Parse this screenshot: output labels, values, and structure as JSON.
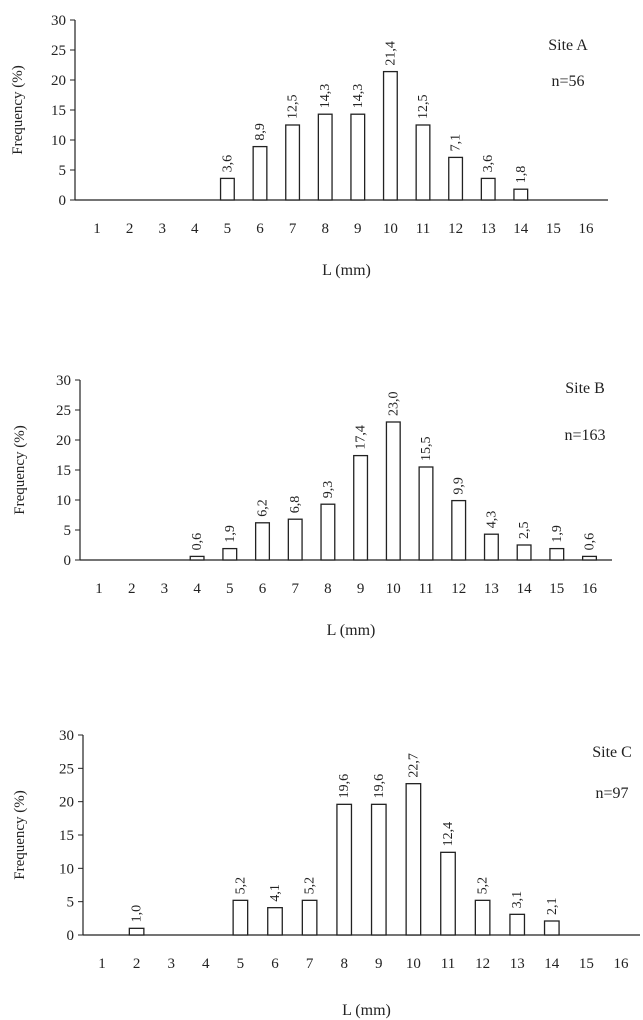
{
  "chart_data": [
    {
      "type": "bar",
      "title": "Site A",
      "subtitle": "n=56",
      "xlabel": "L (mm)",
      "ylabel": "Frequency (%)",
      "ylim": [
        0,
        30
      ],
      "yticks": [
        0,
        5,
        10,
        15,
        20,
        25,
        30
      ],
      "categories": [
        1,
        2,
        3,
        4,
        5,
        6,
        7,
        8,
        9,
        10,
        11,
        12,
        13,
        14,
        15,
        16
      ],
      "values": [
        null,
        null,
        null,
        null,
        3.6,
        8.9,
        12.5,
        14.3,
        14.3,
        21.4,
        12.5,
        7.1,
        3.6,
        1.8,
        null,
        null
      ],
      "labels": [
        "",
        "",
        "",
        "",
        "3,6",
        "8,9",
        "12,5",
        "14,3",
        "14,3",
        "21,4",
        "12,5",
        "7,1",
        "3,6",
        "1,8",
        "",
        ""
      ],
      "grid": false,
      "legend": "none"
    },
    {
      "type": "bar",
      "title": "Site B",
      "subtitle": "n=163",
      "xlabel": "L (mm)",
      "ylabel": "Frequency (%)",
      "ylim": [
        0,
        30
      ],
      "yticks": [
        0,
        5,
        10,
        15,
        20,
        25,
        30
      ],
      "categories": [
        1,
        2,
        3,
        4,
        5,
        6,
        7,
        8,
        9,
        10,
        11,
        12,
        13,
        14,
        15,
        16
      ],
      "values": [
        null,
        null,
        null,
        0.6,
        1.9,
        6.2,
        6.8,
        9.3,
        17.4,
        23.0,
        15.5,
        9.9,
        4.3,
        2.5,
        1.9,
        0.6
      ],
      "labels": [
        "",
        "",
        "",
        "0,6",
        "1,9",
        "6,2",
        "6,8",
        "9,3",
        "17,4",
        "23,0",
        "15,5",
        "9,9",
        "4,3",
        "2,5",
        "1,9",
        "0,6"
      ],
      "grid": false,
      "legend": "none"
    },
    {
      "type": "bar",
      "title": "Site C",
      "subtitle": "n=97",
      "xlabel": "L (mm)",
      "ylabel": "Frequency (%)",
      "ylim": [
        0,
        30
      ],
      "yticks": [
        0,
        5,
        10,
        15,
        20,
        25,
        30
      ],
      "categories": [
        1,
        2,
        3,
        4,
        5,
        6,
        7,
        8,
        9,
        10,
        11,
        12,
        13,
        14,
        15,
        16
      ],
      "values": [
        null,
        1.0,
        null,
        null,
        5.2,
        4.1,
        5.2,
        19.6,
        19.6,
        22.7,
        12.4,
        5.2,
        3.1,
        2.1,
        null,
        null
      ],
      "labels": [
        "",
        "1,0",
        "",
        "",
        "5,2",
        "4,1",
        "5,2",
        "19,6",
        "19,6",
        "22,7",
        "12,4",
        "5,2",
        "3,1",
        "2,1",
        "",
        ""
      ],
      "grid": false,
      "legend": "none"
    }
  ]
}
